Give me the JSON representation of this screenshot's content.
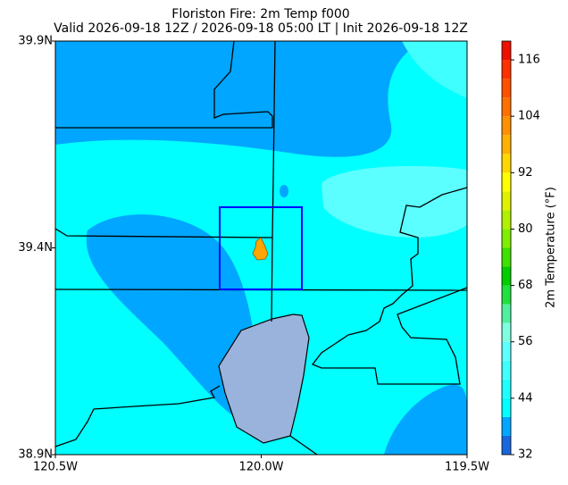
{
  "header": {
    "title": "Floriston Fire: 2m Temp f000",
    "subtitle": "Valid 2026-09-18 12Z / 2026-09-18 05:00 LT | Init 2026-09-18 12Z"
  },
  "map": {
    "lat_lim": [
      38.9,
      39.9
    ],
    "lon_lim": [
      -120.5,
      -119.5
    ],
    "lat_ticks": [
      {
        "value": 39.9,
        "label": "39.9N"
      },
      {
        "value": 39.4,
        "label": "39.4N"
      },
      {
        "value": 38.9,
        "label": "38.9N"
      }
    ],
    "lon_ticks": [
      {
        "value": -120.5,
        "label": "120.5W"
      },
      {
        "value": -120.0,
        "label": "120.0W"
      },
      {
        "value": -119.5,
        "label": "119.5W"
      }
    ]
  },
  "colorbar": {
    "label": "2m Temperature (°F)",
    "ticks": [
      32,
      44,
      56,
      68,
      80,
      92,
      104,
      116
    ],
    "levels": [
      32,
      36,
      40,
      44,
      48,
      52,
      56,
      60,
      64,
      68,
      72,
      76,
      80,
      84,
      88,
      92,
      96,
      100,
      104,
      108,
      112,
      116,
      120
    ],
    "colors": [
      "#1a66dd",
      "#00a6ff",
      "#00ffff",
      "#20ffff",
      "#40ffff",
      "#60ffff",
      "#80ffe0",
      "#50f0a0",
      "#20e040",
      "#00cc00",
      "#40e000",
      "#80ee00",
      "#b0f000",
      "#e0f000",
      "#ffff00",
      "#ffd700",
      "#ffb000",
      "#ff9000",
      "#ff7000",
      "#ff5000",
      "#ff3000",
      "#ee1000"
    ]
  }
}
